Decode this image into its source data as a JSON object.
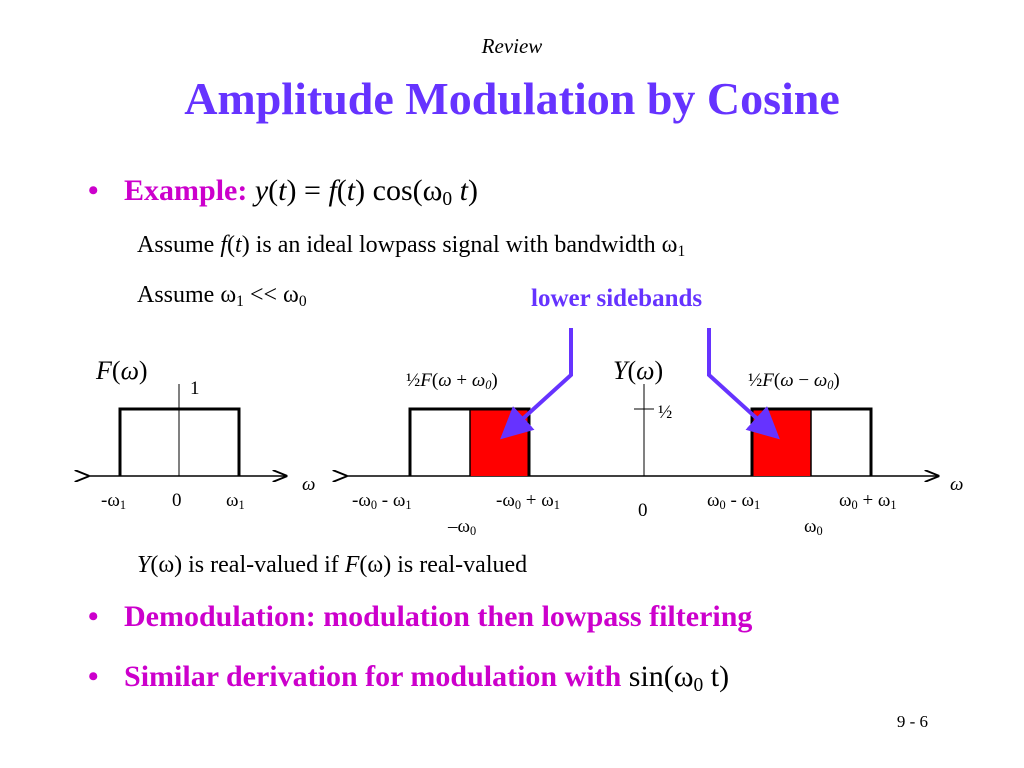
{
  "header": {
    "review": "Review",
    "title": "Amplitude Modulation by Cosine"
  },
  "example": {
    "label": "Example:",
    "equation": {
      "y": "y",
      "t1": "t",
      "eq": " = ",
      "f": "f",
      "t2": "t",
      "cos": " cos(ω",
      "sub0": "0",
      "t3": "t",
      "close": ")"
    },
    "assume1": {
      "pre": "Assume ",
      "f": "f",
      "t": "t",
      "post": " is an ideal lowpass signal with bandwidth ω",
      "sub": "1"
    },
    "assume2": {
      "pre": "Assume ω",
      "sub1": "1",
      "mid": " << ω",
      "sub0": "0"
    }
  },
  "annotation": {
    "lower_sidebands": "lower sidebands"
  },
  "left_plot": {
    "title_F": "F",
    "title_w": "ω",
    "peak_label": "1",
    "axis_var": "ω",
    "tick_neg": "-ω",
    "tick_neg_sub": "1",
    "tick_zero": "0",
    "tick_pos": "ω",
    "tick_pos_sub": "1"
  },
  "right_plot": {
    "title_Y": "Y",
    "title_w": "ω",
    "half_label": "½",
    "left_band_label": {
      "pre": "½",
      "F": "F",
      "w": "ω",
      "op": " + ",
      "w0": "ω",
      "sub": "0"
    },
    "right_band_label": {
      "pre": "½",
      "F": "F",
      "w": "ω",
      "op": " − ",
      "w0": "ω",
      "sub": "0"
    },
    "axis_var": "ω",
    "ticks": {
      "t1": {
        "a": "-ω",
        "as": "0",
        "b": " - ω",
        "bs": "1"
      },
      "t2": {
        "a": "-ω",
        "as": "0",
        "b": " + ω",
        "bs": "1"
      },
      "t3": {
        "a": "–ω",
        "as": "0"
      },
      "zero": "0",
      "t4": {
        "a": "ω",
        "as": "0",
        "b": " - ω",
        "bs": "1"
      },
      "t5": {
        "a": "ω",
        "as": "0",
        "b": " + ω",
        "bs": "1"
      },
      "t6": {
        "a": "ω",
        "as": "0"
      }
    }
  },
  "real_note": {
    "Y": "Y",
    "mid1": "(ω) is real-valued if ",
    "F": "F",
    "mid2": "(ω) is real-valued"
  },
  "bullets": {
    "b2": "Demodulation: modulation then lowpass filtering",
    "b3_text": "Similar derivation for modulation with ",
    "b3_math_pre": "sin(ω",
    "b3_math_sub": "0",
    "b3_math_post": " t)"
  },
  "page_number": "9 - 6",
  "colors": {
    "title": "#6633ff",
    "bullet": "#cc00cc",
    "sideband_fill": "#ff0000",
    "arrow": "#6633ff"
  }
}
